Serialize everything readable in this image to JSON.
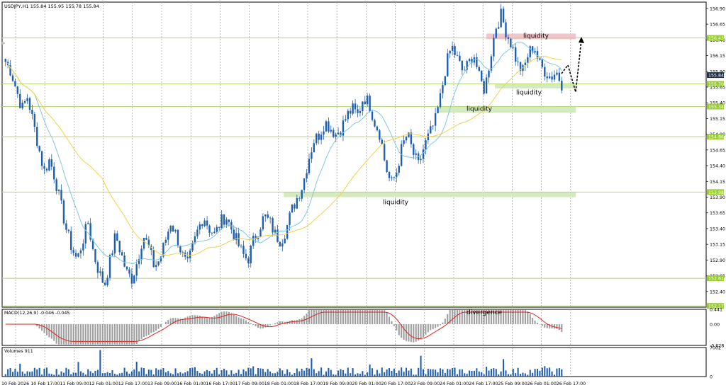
{
  "header": {
    "symbol_line": "USDJPY,H1  155.84 155.95 155.78 155.84"
  },
  "colors": {
    "bull": "#1f5fb0",
    "bear": "#1f5fb0",
    "ma_fast": "#7ec8e3",
    "ma_slow": "#f2d24a",
    "hline": "#b7d77a",
    "hline_label_bg": "#9acd32",
    "current_price_bg": "#22324a",
    "grid": "#9a9a9a",
    "zone_green": "#cfe8b8",
    "zone_red": "#f0c0c4",
    "macd_hist": "#9e9e9e",
    "macd_signal": "#e02020",
    "volume": "#1f5fb0",
    "annotation_arrow": "#000000"
  },
  "chart_data": [
    {
      "type": "candlestick",
      "name": "price-panel",
      "ylim": [
        152.15,
        157.0
      ],
      "y_ticks": [
        "156.90",
        "156.65",
        "156.40",
        "156.15",
        "155.90",
        "155.65",
        "155.40",
        "155.15",
        "154.90",
        "154.65",
        "154.40",
        "154.15",
        "153.90",
        "153.65",
        "153.40",
        "153.15",
        "152.90",
        "152.65",
        "152.40"
      ],
      "x_labels": [
        "10 Feb 2026",
        "10 Feb 17:00",
        "11 Feb 09:00",
        "12 Feb 01:00",
        "12 Feb 17:00",
        "13 Feb 09:00",
        "16 Feb 01:00",
        "16 Feb 17:00",
        "17 Feb 09:00",
        "18 Feb 01:00",
        "18 Feb 17:00",
        "19 Feb 09:00",
        "20 Feb 01:00",
        "20 Feb 17:00",
        "23 Feb 09:00",
        "24 Feb 01:00",
        "24 Feb 17:00",
        "25 Feb 09:00",
        "26 Feb 01:00",
        "26 Feb 17:00"
      ],
      "close_path": [
        156.05,
        155.9,
        155.6,
        155.3,
        155.5,
        155.1,
        154.7,
        154.3,
        154.5,
        154.2,
        153.8,
        153.4,
        153.1,
        152.9,
        153.2,
        153.5,
        153.0,
        152.7,
        152.5,
        152.9,
        153.3,
        153.0,
        152.7,
        152.6,
        152.9,
        153.3,
        153.1,
        152.8,
        152.9,
        153.2,
        153.5,
        153.3,
        153.0,
        152.8,
        153.1,
        153.4,
        153.6,
        153.4,
        153.3,
        153.5,
        153.6,
        153.4,
        153.2,
        153.0,
        152.9,
        153.2,
        153.4,
        153.6,
        153.5,
        153.3,
        153.2,
        153.4,
        153.7,
        153.9,
        154.1,
        154.5,
        154.8,
        154.9,
        155.1,
        155.0,
        154.9,
        155.0,
        155.2,
        155.3,
        155.2,
        155.5,
        155.4,
        155.1,
        154.9,
        154.4,
        154.1,
        154.3,
        154.7,
        154.9,
        154.6,
        154.4,
        154.7,
        154.9,
        155.1,
        155.5,
        156.0,
        156.3,
        156.1,
        155.9,
        156.0,
        156.2,
        155.8,
        155.6,
        156.1,
        156.6,
        156.8,
        156.5,
        156.3,
        156.0,
        155.9,
        156.2,
        156.3,
        156.0,
        155.9,
        155.8,
        155.9,
        155.7
      ],
      "levels": [
        {
          "value": 156.43,
          "label": "156.43"
        },
        {
          "value": 155.7,
          "label": "155.70"
        },
        {
          "value": 155.34,
          "label": "155.34"
        },
        {
          "value": 154.86,
          "label": "154.86"
        },
        {
          "value": 153.98,
          "label": "153.98"
        },
        {
          "value": 152.61,
          "label": "152.61"
        },
        {
          "value": 152.17,
          "label": "152.17"
        }
      ],
      "current_price": {
        "value": 155.84,
        "label": "155.84"
      },
      "zones": [
        {
          "label": "liquidity",
          "from": 156.41,
          "to": 156.5,
          "color": "red",
          "x_start": 0.688,
          "x_end": 0.815
        },
        {
          "label": "liquidity",
          "from": 155.63,
          "to": 155.7,
          "color": "green",
          "x_start": 0.7,
          "x_end": 0.815
        },
        {
          "label": "liquidity",
          "from": 155.24,
          "to": 155.34,
          "color": "green",
          "x_start": 0.62,
          "x_end": 0.815
        },
        {
          "label": "liquidity",
          "from": 153.9,
          "to": 153.98,
          "color": "green",
          "x_start": 0.4,
          "x_end": 0.815
        }
      ]
    },
    {
      "type": "bar",
      "name": "macd-panel",
      "title": "MACD(12,26,9) -0.046 -0.045",
      "annotation": "divergence",
      "ylim": [
        -0.628,
        0.441
      ],
      "y_ticks": [
        "0.441",
        "0.00",
        "-0.628"
      ]
    },
    {
      "type": "bar",
      "name": "volume-panel",
      "title": "Volumes 911",
      "ylim": [
        0,
        7002
      ],
      "y_ticks": [
        "7002",
        "0"
      ]
    }
  ]
}
